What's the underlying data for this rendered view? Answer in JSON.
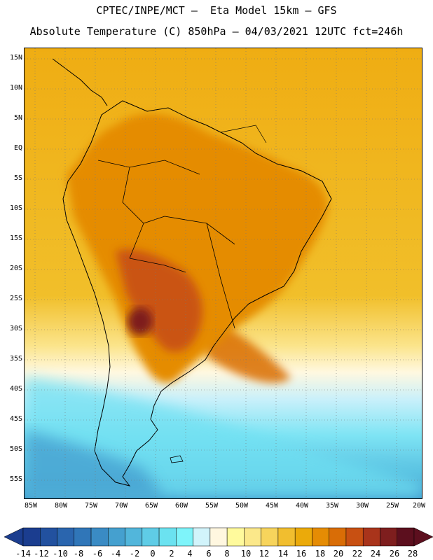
{
  "header": {
    "line1": "CPTEC/INPE/MCT –  Eta Model 15km – GFS",
    "line2": "Absolute Temperature (C) 850hPa – 04/03/2021 12UTC fct=246h"
  },
  "map": {
    "lat_labels": [
      "15N",
      "10N",
      "5N",
      "EQ",
      "5S",
      "10S",
      "15S",
      "20S",
      "25S",
      "30S",
      "35S",
      "40S",
      "45S",
      "50S",
      "55S"
    ],
    "lon_labels": [
      "85W",
      "80W",
      "75W",
      "70W",
      "65W",
      "60W",
      "55W",
      "50W",
      "45W",
      "40W",
      "35W",
      "30W",
      "25W",
      "20W"
    ],
    "gridlines": "dotted"
  },
  "colorbar": {
    "levels": [
      "-14",
      "-12",
      "-10",
      "-8",
      "-6",
      "-4",
      "-2",
      "0",
      "2",
      "4",
      "6",
      "8",
      "10",
      "12",
      "14",
      "16",
      "18",
      "20",
      "22",
      "24",
      "26",
      "28"
    ],
    "colors": [
      "#1b3d8f",
      "#22519f",
      "#2a65ae",
      "#3076b8",
      "#3a8bc4",
      "#45a0cf",
      "#52b6db",
      "#5fcce6",
      "#6be2f0",
      "#7ef4fa",
      "#d2f4fb",
      "#fff7e0",
      "#fffa9c",
      "#fbe88a",
      "#f7d45c",
      "#f1be2f",
      "#ebaa0a",
      "#e58c04",
      "#d96d06",
      "#c85012",
      "#a9341b",
      "#7e1e1e",
      "#5c0f1e"
    ]
  }
}
